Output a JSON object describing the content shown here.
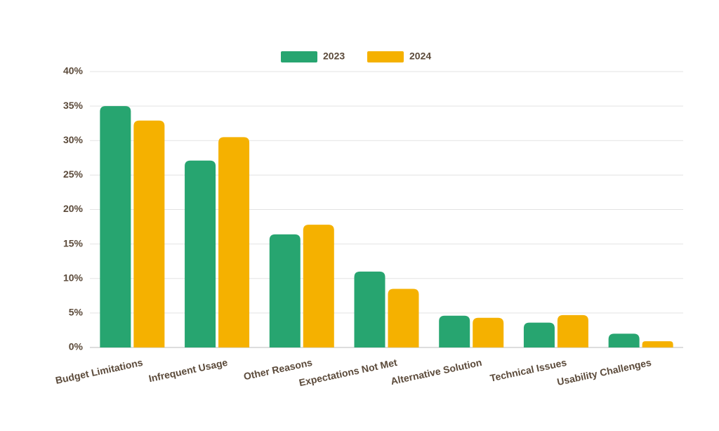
{
  "chart_data": {
    "type": "bar",
    "categories": [
      "Budget Limitations",
      "Infrequent Usage",
      "Other Reasons",
      "Expectations Not Met",
      "Alternative Solution",
      "Technical Issues",
      "Usability Challenges"
    ],
    "series": [
      {
        "name": "2023",
        "color": "#27a570",
        "values": [
          35.0,
          27.1,
          16.4,
          11.0,
          4.6,
          3.6,
          2.0
        ]
      },
      {
        "name": "2024",
        "color": "#f5b100",
        "values": [
          32.9,
          30.5,
          17.8,
          8.5,
          4.3,
          4.7,
          0.9
        ]
      }
    ],
    "ylim": [
      0,
      40
    ],
    "yticks": [
      {
        "value": 0,
        "label": "0%"
      },
      {
        "value": 5,
        "label": "5%"
      },
      {
        "value": 10,
        "label": "10%"
      },
      {
        "value": 15,
        "label": "15%"
      },
      {
        "value": 20,
        "label": "20%"
      },
      {
        "value": 25,
        "label": "25%"
      },
      {
        "value": 30,
        "label": "30%"
      },
      {
        "value": 35,
        "label": "35%"
      },
      {
        "value": 40,
        "label": "40%"
      }
    ],
    "grid": true,
    "legend": "top"
  }
}
